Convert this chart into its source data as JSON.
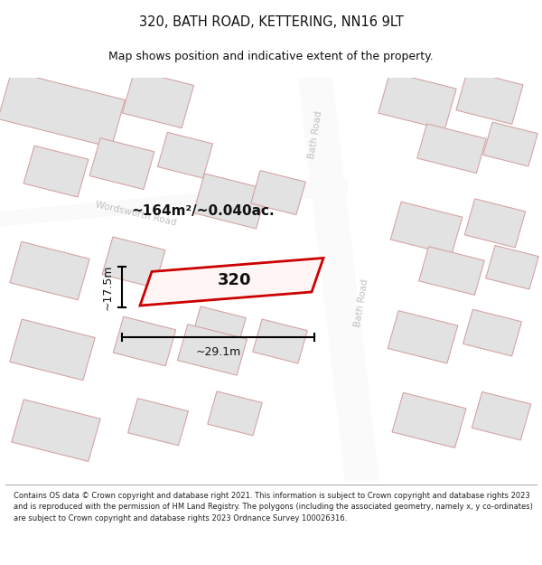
{
  "title": "320, BATH ROAD, KETTERING, NN16 9LT",
  "subtitle": "Map shows position and indicative extent of the property.",
  "footer": "Contains OS data © Crown copyright and database right 2021. This information is subject to Crown copyright and database rights 2023 and is reproduced with the permission of HM Land Registry. The polygons (including the associated geometry, namely x, y co-ordinates) are subject to Crown copyright and database rights 2023 Ordnance Survey 100026316.",
  "area_label": "~164m²/~0.040ac.",
  "width_label": "~29.1m",
  "height_label": "~17.5m",
  "property_number": "320",
  "map_bg": "#efefef",
  "road_color": "#fafafa",
  "building_fill": "#e2e2e2",
  "building_stroke": "#d4a0a0",
  "property_stroke": "#cc0000",
  "property_fill": "#fff5f5",
  "text_color_dark": "#111111",
  "text_color_road": "#c0c0c0",
  "title_fontsize": 10.5,
  "subtitle_fontsize": 9,
  "footer_fontsize": 6.0
}
